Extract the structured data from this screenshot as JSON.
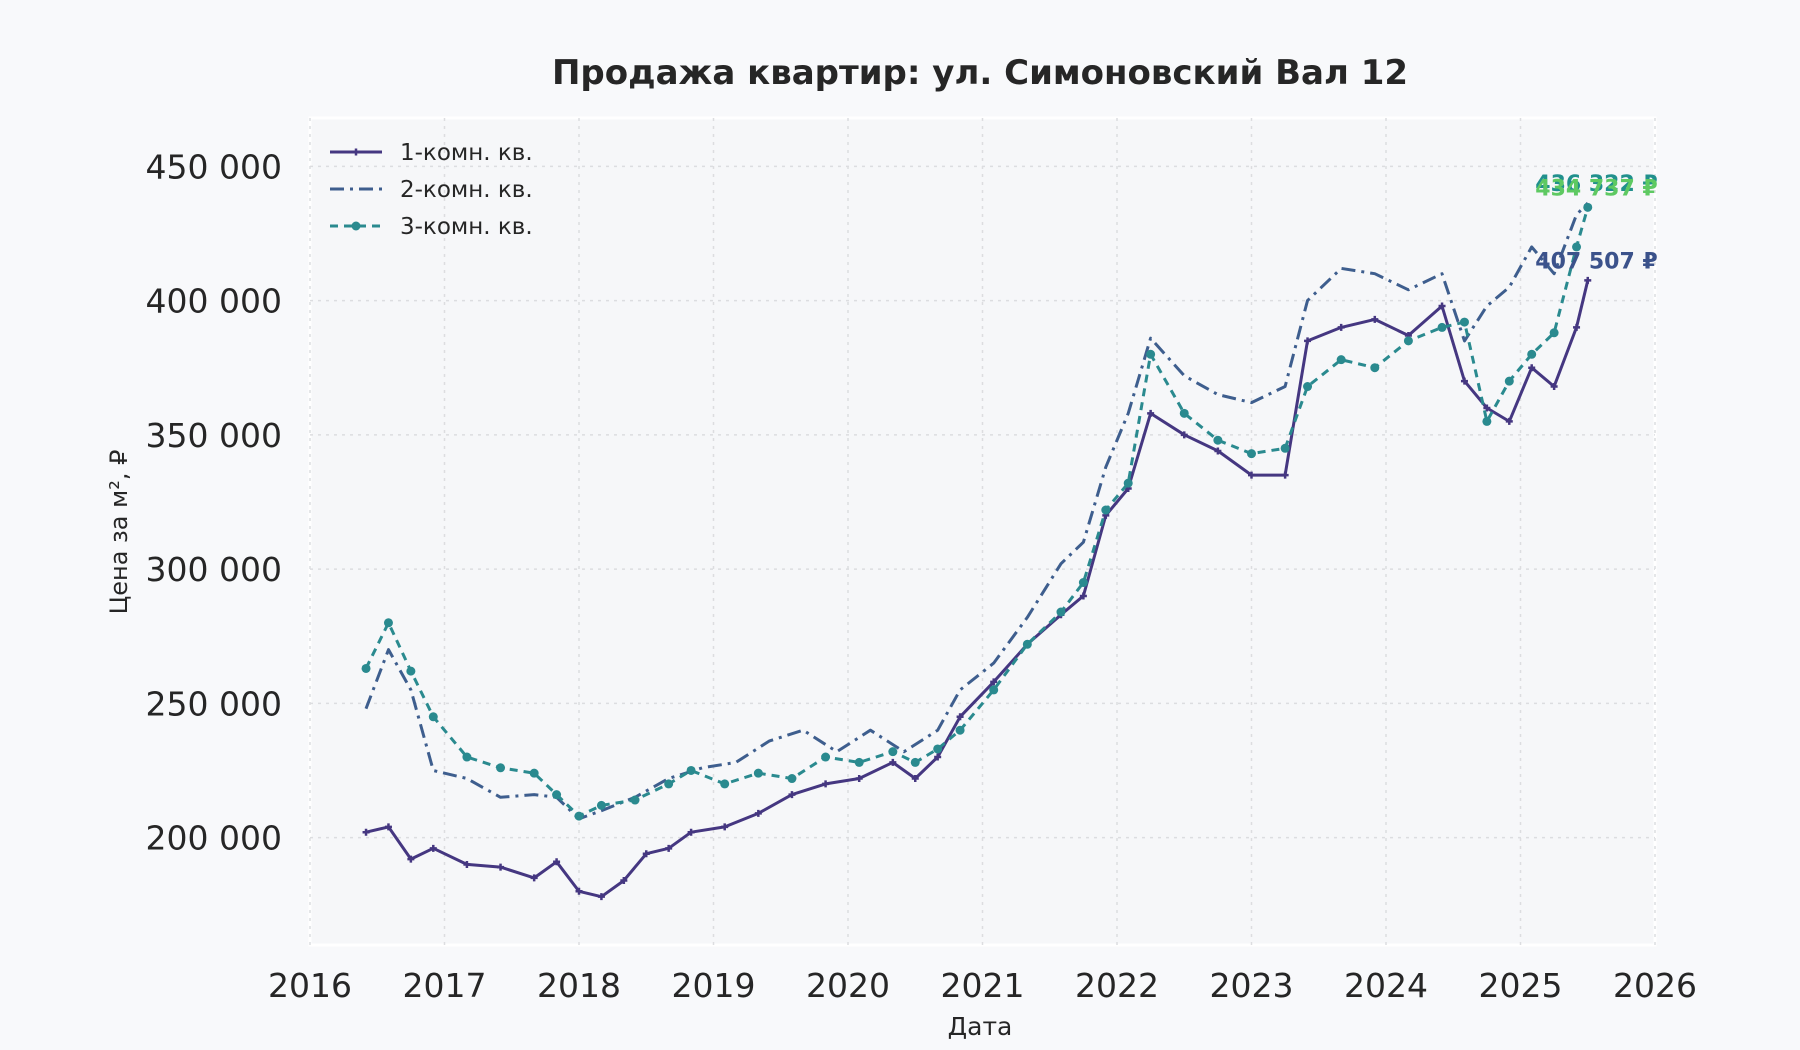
{
  "chart_data": {
    "type": "line",
    "title": "Продажа квартир: ул. Симоновский Вал 12",
    "xlabel": "Дата",
    "ylabel": "Цена за м², ₽",
    "xlim": [
      2016,
      2026
    ],
    "ylim": [
      160000,
      468000
    ],
    "x_ticks": [
      "2016",
      "2017",
      "2018",
      "2019",
      "2020",
      "2021",
      "2022",
      "2023",
      "2024",
      "2025",
      "2026"
    ],
    "y_ticks": [
      {
        "value": 200000,
        "label": "200 000"
      },
      {
        "value": 250000,
        "label": "250 000"
      },
      {
        "value": 300000,
        "label": "300 000"
      },
      {
        "value": 350000,
        "label": "350 000"
      },
      {
        "value": 400000,
        "label": "400 000"
      },
      {
        "value": 450000,
        "label": "450 000"
      }
    ],
    "grid": true,
    "legend_position": "top-left",
    "series": [
      {
        "name": "1-комн. кв.",
        "color": "#453781",
        "dash": "solid",
        "marker": "cross",
        "end_label": "407 507 ₽",
        "end_label_color": "#3b528b",
        "x": [
          "2016-06",
          "2016-08",
          "2016-10",
          "2016-12",
          "2017-03",
          "2017-06",
          "2017-09",
          "2017-11",
          "2018-01",
          "2018-03",
          "2018-05",
          "2018-07",
          "2018-09",
          "2018-11",
          "2019-02",
          "2019-05",
          "2019-08",
          "2019-11",
          "2020-02",
          "2020-05",
          "2020-07",
          "2020-09",
          "2020-11",
          "2021-02",
          "2021-05",
          "2021-08",
          "2021-10",
          "2021-12",
          "2022-02",
          "2022-04",
          "2022-07",
          "2022-10",
          "2023-01",
          "2023-04",
          "2023-06",
          "2023-09",
          "2023-12",
          "2024-03",
          "2024-06",
          "2024-08",
          "2024-10",
          "2024-12",
          "2025-02",
          "2025-04",
          "2025-06",
          "2025-07"
        ],
        "y": [
          202000,
          204000,
          192000,
          196000,
          190000,
          189000,
          185000,
          191000,
          180000,
          178000,
          184000,
          194000,
          196000,
          202000,
          204000,
          209000,
          216000,
          220000,
          222000,
          228000,
          222000,
          230000,
          245000,
          258000,
          272000,
          283000,
          290000,
          320000,
          330000,
          358000,
          350000,
          344000,
          335000,
          335000,
          385000,
          390000,
          393000,
          387000,
          398000,
          370000,
          360000,
          355000,
          375000,
          368000,
          390000,
          407507
        ]
      },
      {
        "name": "2-комн. кв.",
        "color": "#3e5e8e",
        "dash": "dashdot",
        "marker": "none",
        "end_label": "436 322 ₽",
        "end_label_color": "#21908d",
        "x": [
          "2016-06",
          "2016-08",
          "2016-10",
          "2016-12",
          "2017-03",
          "2017-06",
          "2017-09",
          "2017-11",
          "2018-01",
          "2018-03",
          "2018-06",
          "2018-09",
          "2018-12",
          "2019-03",
          "2019-06",
          "2019-09",
          "2019-12",
          "2020-03",
          "2020-06",
          "2020-09",
          "2020-11",
          "2021-02",
          "2021-05",
          "2021-08",
          "2021-10",
          "2021-12",
          "2022-02",
          "2022-04",
          "2022-07",
          "2022-10",
          "2023-01",
          "2023-04",
          "2023-06",
          "2023-09",
          "2023-12",
          "2024-03",
          "2024-06",
          "2024-08",
          "2024-10",
          "2024-12",
          "2025-02",
          "2025-04",
          "2025-06",
          "2025-07"
        ],
        "y": [
          248000,
          270000,
          255000,
          225000,
          222000,
          215000,
          216000,
          215000,
          207000,
          210000,
          215000,
          222000,
          226000,
          228000,
          236000,
          240000,
          232000,
          240000,
          232000,
          240000,
          255000,
          265000,
          282000,
          302000,
          310000,
          338000,
          358000,
          386000,
          372000,
          365000,
          362000,
          368000,
          400000,
          412000,
          410000,
          404000,
          410000,
          385000,
          398000,
          405000,
          420000,
          410000,
          432000,
          436322
        ]
      },
      {
        "name": "3-комн. кв.",
        "color": "#2a8a8f",
        "dash": "dotted",
        "marker": "circle",
        "end_label": "434 737 ₽",
        "end_label_color": "#5ec962",
        "x": [
          "2016-06",
          "2016-08",
          "2016-10",
          "2016-12",
          "2017-03",
          "2017-06",
          "2017-09",
          "2017-11",
          "2018-01",
          "2018-03",
          "2018-06",
          "2018-09",
          "2018-11",
          "2019-02",
          "2019-05",
          "2019-08",
          "2019-11",
          "2020-02",
          "2020-05",
          "2020-07",
          "2020-09",
          "2020-11",
          "2021-02",
          "2021-05",
          "2021-08",
          "2021-10",
          "2021-12",
          "2022-02",
          "2022-04",
          "2022-07",
          "2022-10",
          "2023-01",
          "2023-04",
          "2023-06",
          "2023-09",
          "2023-12",
          "2024-03",
          "2024-06",
          "2024-08",
          "2024-10",
          "2024-12",
          "2025-02",
          "2025-04",
          "2025-06",
          "2025-07"
        ],
        "y": [
          263000,
          280000,
          262000,
          245000,
          230000,
          226000,
          224000,
          216000,
          208000,
          212000,
          214000,
          220000,
          225000,
          220000,
          224000,
          222000,
          230000,
          228000,
          232000,
          228000,
          233000,
          240000,
          255000,
          272000,
          284000,
          295000,
          322000,
          332000,
          380000,
          358000,
          348000,
          343000,
          345000,
          368000,
          378000,
          375000,
          385000,
          390000,
          392000,
          355000,
          370000,
          380000,
          388000,
          420000,
          434737
        ]
      }
    ]
  }
}
